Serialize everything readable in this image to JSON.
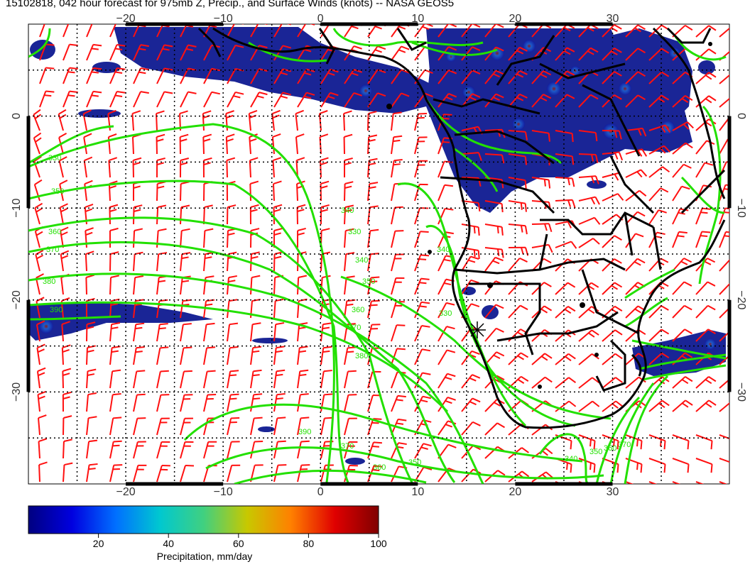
{
  "title": "15102818, 042 hour forecast for 975mb Z, Precip., and Surface Winds (knots) -- NASA GEOS5",
  "map": {
    "lon_range": [
      -30,
      42
    ],
    "lat_range": [
      -40,
      10
    ],
    "lon_ticks": [
      -20,
      -10,
      0,
      10,
      20,
      30
    ],
    "lat_ticks": [
      0,
      -10,
      -20,
      -30
    ],
    "lon_tick_labels": [
      "−20",
      "−10",
      "0",
      "10",
      "20",
      "30"
    ],
    "lat_tick_labels": [
      "0",
      "−10",
      "−20",
      "−30"
    ],
    "contour_labels": [
      "330",
      "350",
      "360",
      "370",
      "380",
      "390",
      "340",
      "330",
      "340",
      "350",
      "360",
      "370",
      "380",
      "390",
      "370",
      "360",
      "350",
      "340",
      "330",
      "340",
      "350",
      "360",
      "370"
    ],
    "colors": {
      "land_outline": "#000000",
      "contour": "#22e000",
      "wind_barb": "#ff1010",
      "precip_low": "#141e9e",
      "precip_high": "#8b1a1a"
    },
    "grid": "dotted"
  },
  "colorbar": {
    "title": "Precipitation, mm/day",
    "ticks": [
      "20",
      "40",
      "60",
      "80",
      "100"
    ],
    "range": [
      0,
      100
    ],
    "stops": [
      "#000080",
      "#0000e0",
      "#0070ff",
      "#00c8d0",
      "#40d080",
      "#c8c800",
      "#ff8000",
      "#e00000",
      "#800000"
    ]
  }
}
